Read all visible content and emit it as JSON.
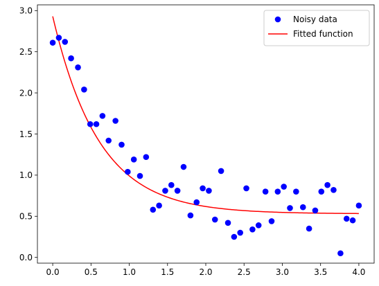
{
  "chart_data": {
    "type": "scatter",
    "title": "",
    "xlabel": "",
    "ylabel": "",
    "xlim": [
      -0.2,
      4.2
    ],
    "ylim": [
      -0.07,
      3.07
    ],
    "xticks": [
      0.0,
      0.5,
      1.0,
      1.5,
      2.0,
      2.5,
      3.0,
      3.5,
      4.0
    ],
    "xtick_labels": [
      "0.0",
      "0.5",
      "1.0",
      "1.5",
      "2.0",
      "2.5",
      "3.0",
      "3.5",
      "4.0"
    ],
    "yticks": [
      0.0,
      0.5,
      1.0,
      1.5,
      2.0,
      2.5,
      3.0
    ],
    "ytick_labels": [
      "0.0",
      "0.5",
      "1.0",
      "1.5",
      "2.0",
      "2.5",
      "3.0"
    ],
    "grid": false,
    "legend_position": "top-right",
    "series": [
      {
        "name": "Noisy data",
        "kind": "scatter",
        "color": "#0000ff",
        "x": [
          0.0,
          0.08,
          0.16,
          0.24,
          0.33,
          0.41,
          0.49,
          0.57,
          0.65,
          0.73,
          0.82,
          0.9,
          0.98,
          1.06,
          1.14,
          1.22,
          1.31,
          1.39,
          1.47,
          1.55,
          1.63,
          1.71,
          1.8,
          1.88,
          1.96,
          2.04,
          2.12,
          2.2,
          2.29,
          2.37,
          2.45,
          2.53,
          2.61,
          2.69,
          2.78,
          2.86,
          2.94,
          3.02,
          3.1,
          3.18,
          3.27,
          3.35,
          3.43,
          3.51,
          3.59,
          3.67,
          3.76,
          3.84,
          3.92,
          4.0
        ],
        "y": [
          2.61,
          2.67,
          2.62,
          2.42,
          2.31,
          2.04,
          1.62,
          1.62,
          1.72,
          1.42,
          1.66,
          1.37,
          1.04,
          1.19,
          0.99,
          1.22,
          0.58,
          0.63,
          0.81,
          0.88,
          0.81,
          1.1,
          0.51,
          0.67,
          0.84,
          0.81,
          0.46,
          1.05,
          0.42,
          0.25,
          0.3,
          0.84,
          0.34,
          0.39,
          0.8,
          0.44,
          0.8,
          0.86,
          0.6,
          0.8,
          0.61,
          0.35,
          0.57,
          0.8,
          0.88,
          0.82,
          0.05,
          0.47,
          0.45,
          0.63
        ]
      },
      {
        "name": "Fitted function",
        "kind": "line",
        "color": "#ff0000",
        "function": "a*exp(-b*x)+c",
        "params": {
          "a": 2.4,
          "b": 1.65,
          "c": 0.53
        }
      }
    ]
  }
}
